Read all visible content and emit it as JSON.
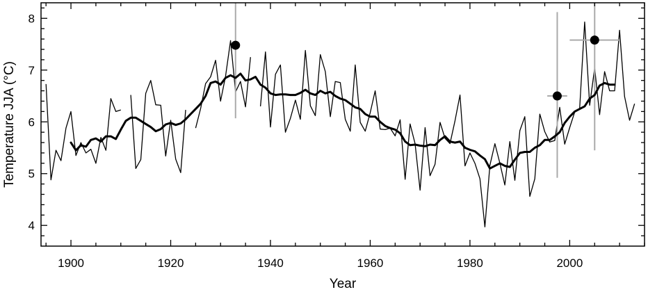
{
  "chart_data": {
    "type": "line",
    "xlabel": "Year",
    "ylabel": "Temperature JJA (°C)",
    "xlim": [
      1894,
      2015
    ],
    "ylim": [
      3.6,
      8.3
    ],
    "xticks": [
      1900,
      1920,
      1940,
      1960,
      1980,
      2000
    ],
    "yticks": [
      4,
      5,
      6,
      7,
      8
    ],
    "grid": false,
    "series": [
      {
        "style": "thin-line",
        "color": "#000000",
        "segments": [
          {
            "x": [
              1895,
              1896,
              1897,
              1898,
              1899,
              1900,
              1901,
              1902,
              1903,
              1904,
              1905,
              1906,
              1907,
              1908,
              1909,
              1910
            ],
            "y": [
              6.73,
              4.88,
              5.45,
              5.25,
              5.88,
              6.2,
              5.35,
              5.6,
              5.4,
              5.47,
              5.2,
              5.7,
              5.45,
              6.45,
              6.2,
              6.23
            ]
          },
          {
            "x": [
              1912,
              1913,
              1914,
              1915,
              1916,
              1917,
              1918,
              1919,
              1920,
              1921,
              1922,
              1923
            ],
            "y": [
              6.52,
              5.1,
              5.27,
              6.55,
              6.8,
              6.33,
              6.32,
              5.34,
              6.03,
              5.28,
              5.02,
              6.23
            ]
          },
          {
            "x": [
              1925,
              1926,
              1927,
              1928,
              1929,
              1930,
              1931,
              1932,
              1933,
              1934,
              1935,
              1936
            ],
            "y": [
              5.88,
              6.26,
              6.74,
              6.87,
              7.19,
              6.4,
              6.88,
              7.57,
              6.58,
              6.78,
              6.29,
              7.25
            ]
          },
          {
            "x": [
              1938,
              1939,
              1940,
              1941,
              1942,
              1943,
              1944,
              1945,
              1946,
              1947,
              1948,
              1949,
              1950,
              1951,
              1952,
              1953,
              1954,
              1955,
              1956,
              1957,
              1958,
              1959,
              1960,
              1961,
              1962,
              1963,
              1964,
              1965,
              1966,
              1967,
              1968,
              1969,
              1970,
              1971,
              1972,
              1973,
              1974,
              1975,
              1976,
              1977,
              1978,
              1979,
              1980,
              1981,
              1982,
              1983,
              1984,
              1985,
              1986,
              1987,
              1988,
              1989,
              1990,
              1991,
              1992,
              1993,
              1994,
              1995,
              1996,
              1997,
              1998,
              1999,
              2000,
              2001,
              2002,
              2003,
              2004,
              2005,
              2006,
              2007,
              2008,
              2009,
              2010,
              2011,
              2012,
              2013
            ],
            "y": [
              6.3,
              7.35,
              5.9,
              6.92,
              7.1,
              5.8,
              6.07,
              6.42,
              6.05,
              7.38,
              6.31,
              6.12,
              7.3,
              6.97,
              6.1,
              6.78,
              6.76,
              6.05,
              5.82,
              7.1,
              5.99,
              5.82,
              6.18,
              6.6,
              5.86,
              5.85,
              5.88,
              5.73,
              6.04,
              4.89,
              5.96,
              5.58,
              4.68,
              5.89,
              4.96,
              5.18,
              5.99,
              5.68,
              5.58,
              6.02,
              6.52,
              5.15,
              5.4,
              5.2,
              4.9,
              3.97,
              5.16,
              5.58,
              5.2,
              4.78,
              5.62,
              4.87,
              5.83,
              6.1,
              4.56,
              4.9,
              6.15,
              5.81,
              5.61,
              5.64,
              6.28,
              5.57,
              5.89,
              6.19,
              6.26,
              7.93,
              6.32,
              7.04,
              6.14,
              6.97,
              6.6,
              6.6,
              7.77,
              6.49,
              6.03,
              6.35
            ]
          }
        ]
      },
      {
        "style": "thick-smoothed",
        "color": "#000000",
        "x": [
          1900,
          1901,
          1902,
          1903,
          1904,
          1905,
          1906,
          1907,
          1908,
          1909,
          1910,
          1911,
          1912,
          1913,
          1914,
          1915,
          1916,
          1917,
          1918,
          1919,
          1920,
          1921,
          1922,
          1923,
          1924,
          1925,
          1926,
          1927,
          1928,
          1929,
          1930,
          1931,
          1932,
          1933,
          1934,
          1935,
          1936,
          1937,
          1938,
          1939,
          1940,
          1941,
          1942,
          1943,
          1944,
          1945,
          1946,
          1947,
          1948,
          1949,
          1950,
          1951,
          1952,
          1953,
          1954,
          1955,
          1956,
          1957,
          1958,
          1959,
          1960,
          1961,
          1962,
          1963,
          1964,
          1965,
          1966,
          1967,
          1968,
          1969,
          1970,
          1971,
          1972,
          1973,
          1974,
          1975,
          1976,
          1977,
          1978,
          1979,
          1980,
          1981,
          1982,
          1983,
          1984,
          1985,
          1986,
          1987,
          1988,
          1989,
          1990,
          1991,
          1992,
          1993,
          1994,
          1995,
          1996,
          1997,
          1998,
          1999,
          2000,
          2001,
          2002,
          2003,
          2004,
          2005,
          2006,
          2007,
          2008,
          2009
        ],
        "y": [
          5.6,
          5.45,
          5.55,
          5.52,
          5.65,
          5.68,
          5.62,
          5.72,
          5.72,
          5.67,
          5.85,
          6.02,
          6.08,
          6.08,
          6.02,
          5.96,
          5.9,
          5.82,
          5.86,
          5.95,
          5.98,
          5.94,
          5.97,
          6.05,
          6.15,
          6.25,
          6.35,
          6.5,
          6.75,
          6.78,
          6.72,
          6.85,
          6.9,
          6.85,
          6.93,
          6.8,
          6.82,
          6.87,
          6.72,
          6.66,
          6.55,
          6.52,
          6.53,
          6.53,
          6.52,
          6.52,
          6.56,
          6.62,
          6.55,
          6.52,
          6.6,
          6.55,
          6.58,
          6.5,
          6.45,
          6.42,
          6.35,
          6.28,
          6.25,
          6.15,
          6.1,
          6.1,
          6.0,
          5.92,
          5.88,
          5.85,
          5.78,
          5.62,
          5.55,
          5.56,
          5.54,
          5.53,
          5.56,
          5.55,
          5.65,
          5.72,
          5.62,
          5.6,
          5.62,
          5.5,
          5.46,
          5.43,
          5.35,
          5.28,
          5.1,
          5.15,
          5.2,
          5.15,
          5.13,
          5.27,
          5.4,
          5.42,
          5.42,
          5.5,
          5.55,
          5.65,
          5.65,
          5.72,
          5.8,
          5.98,
          6.1,
          6.2,
          6.25,
          6.3,
          6.45,
          6.52,
          6.7,
          6.75,
          6.72,
          6.72
        ]
      },
      {
        "style": "points-with-error-bars",
        "color": "#000000",
        "errorbar_color": "#aaaaaa",
        "points": [
          {
            "x": 1933,
            "y": 7.48,
            "y_range": [
              6.07,
              8.3
            ]
          },
          {
            "x": 1997.5,
            "y": 6.5,
            "y_range": [
              4.92,
              8.12
            ],
            "x_range": [
              1995.5,
              1999.5
            ]
          },
          {
            "x": 2005,
            "y": 7.58,
            "y_range": [
              5.45,
              8.3
            ],
            "x_range": [
              2000,
              2010
            ]
          }
        ]
      }
    ]
  }
}
